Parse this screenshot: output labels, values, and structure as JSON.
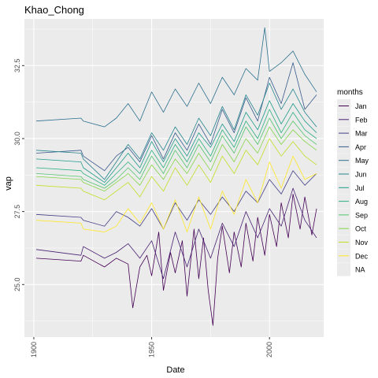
{
  "chart_data": {
    "type": "line",
    "title": "Khao_Chong",
    "xlabel": "Date",
    "ylabel": "vap",
    "xlim": [
      1896,
      2023
    ],
    "ylim": [
      23.2,
      34.1
    ],
    "x_ticks": [
      1900,
      1950,
      2000
    ],
    "x_tick_labels": [
      "1900",
      "1950",
      "2000"
    ],
    "y_ticks": [
      25.0,
      27.5,
      30.0,
      32.5
    ],
    "y_tick_labels": [
      "25.0",
      "27.5",
      "30.0",
      "32.5"
    ],
    "grid": true,
    "legend": {
      "title": "months",
      "position": "right"
    },
    "colors": {
      "panel": "#EBEBEB",
      "grid_major": "#FFFFFF",
      "na_swatch": "#EBEBEB"
    },
    "series": [
      {
        "name": "Jan",
        "color": "#440154",
        "x": [
          1901,
          1920,
          1921,
          1930,
          1935,
          1940,
          1942,
          1945,
          1948,
          1950,
          1953,
          1955,
          1958,
          1960,
          1963,
          1965,
          1968,
          1970,
          1972,
          1974,
          1976,
          1978,
          1980,
          1983,
          1985,
          1988,
          1990,
          1993,
          1995,
          1998,
          2000,
          2003,
          2005,
          2008,
          2010,
          2013,
          2015,
          2018,
          2020
        ],
        "y": [
          25.9,
          25.8,
          26.0,
          25.6,
          25.9,
          25.7,
          24.2,
          25.6,
          26.0,
          25.3,
          26.8,
          24.8,
          26.1,
          25.4,
          26.5,
          24.6,
          26.9,
          25.2,
          26.6,
          24.8,
          23.6,
          25.9,
          27.0,
          25.4,
          26.8,
          25.6,
          27.1,
          25.8,
          27.3,
          26.0,
          27.4,
          26.3,
          27.8,
          26.6,
          28.1,
          26.9,
          28.0,
          26.7,
          27.6
        ]
      },
      {
        "name": "Feb",
        "color": "#482173",
        "x": [
          1901,
          1920,
          1921,
          1930,
          1935,
          1940,
          1945,
          1950,
          1955,
          1960,
          1965,
          1970,
          1975,
          1980,
          1985,
          1990,
          1995,
          2000,
          2005,
          2010,
          2015,
          2020
        ],
        "y": [
          26.2,
          26.0,
          26.3,
          25.9,
          26.1,
          26.4,
          25.9,
          26.5,
          25.2,
          26.8,
          25.6,
          26.9,
          25.9,
          27.1,
          26.3,
          27.5,
          26.6,
          27.6,
          27.0,
          28.3,
          27.2,
          26.6
        ]
      },
      {
        "name": "Mar",
        "color": "#433E85",
        "x": [
          1901,
          1920,
          1921,
          1930,
          1935,
          1940,
          1945,
          1950,
          1955,
          1960,
          1965,
          1970,
          1975,
          1980,
          1985,
          1990,
          1995,
          2000,
          2005,
          2010,
          2015,
          2020
        ],
        "y": [
          27.4,
          27.3,
          27.2,
          27.0,
          27.5,
          27.3,
          27.0,
          27.6,
          26.9,
          27.8,
          27.2,
          27.9,
          27.4,
          28.0,
          27.5,
          28.2,
          27.8,
          28.6,
          28.1,
          28.9,
          28.4,
          28.8
        ]
      },
      {
        "name": "Apr",
        "color": "#38598C",
        "x": [
          1901,
          1920,
          1921,
          1930,
          1935,
          1940,
          1945,
          1950,
          1955,
          1960,
          1965,
          1970,
          1975,
          1980,
          1985,
          1990,
          1995,
          2000,
          2005,
          2010,
          2015,
          2020
        ],
        "y": [
          29.5,
          29.6,
          29.4,
          28.9,
          29.4,
          29.7,
          29.2,
          30.1,
          29.3,
          30.2,
          29.6,
          30.5,
          29.8,
          31.0,
          30.2,
          31.4,
          30.6,
          32.1,
          31.2,
          32.6,
          31.0,
          31.5
        ]
      },
      {
        "name": "May",
        "color": "#2D708E",
        "x": [
          1901,
          1920,
          1921,
          1930,
          1935,
          1940,
          1945,
          1950,
          1955,
          1960,
          1965,
          1970,
          1975,
          1980,
          1985,
          1990,
          1995,
          1998,
          2000,
          2005,
          2010,
          2015,
          2020
        ],
        "y": [
          30.6,
          30.7,
          30.6,
          30.4,
          30.7,
          31.2,
          30.6,
          31.6,
          30.9,
          31.7,
          31.1,
          31.9,
          31.2,
          32.1,
          31.5,
          32.4,
          32.0,
          33.8,
          32.3,
          32.6,
          33.0,
          32.2,
          31.6
        ]
      },
      {
        "name": "Jun",
        "color": "#25858E",
        "x": [
          1901,
          1920,
          1921,
          1930,
          1935,
          1940,
          1945,
          1950,
          1955,
          1960,
          1965,
          1970,
          1975,
          1980,
          1985,
          1990,
          1995,
          2000,
          2005,
          2010,
          2015,
          2020
        ],
        "y": [
          29.6,
          29.5,
          29.3,
          28.6,
          29.2,
          29.8,
          29.3,
          30.2,
          29.6,
          30.4,
          29.8,
          30.7,
          30.1,
          31.1,
          30.3,
          31.5,
          30.8,
          31.9,
          31.0,
          31.7,
          30.9,
          30.4
        ]
      },
      {
        "name": "Jul",
        "color": "#1E9B8A",
        "x": [
          1901,
          1920,
          1921,
          1930,
          1935,
          1940,
          1945,
          1950,
          1955,
          1960,
          1965,
          1970,
          1975,
          1980,
          1985,
          1990,
          1995,
          2000,
          2005,
          2010,
          2015,
          2020
        ],
        "y": [
          29.3,
          29.2,
          29.0,
          28.5,
          29.0,
          29.5,
          29.0,
          29.9,
          29.2,
          30.0,
          29.4,
          30.2,
          29.7,
          30.5,
          29.9,
          30.9,
          30.3,
          31.3,
          30.5,
          31.2,
          30.6,
          30.2
        ]
      },
      {
        "name": "Aug",
        "color": "#2BB07F",
        "x": [
          1901,
          1920,
          1921,
          1930,
          1935,
          1940,
          1945,
          1950,
          1955,
          1960,
          1965,
          1970,
          1975,
          1980,
          1985,
          1990,
          1995,
          2000,
          2005,
          2010,
          2015,
          2020
        ],
        "y": [
          29.0,
          28.9,
          28.8,
          28.4,
          28.8,
          29.2,
          28.8,
          29.6,
          29.0,
          29.8,
          29.2,
          30.0,
          29.4,
          30.3,
          29.7,
          30.6,
          30.0,
          31.0,
          30.2,
          30.9,
          30.3,
          30.0
        ]
      },
      {
        "name": "Sep",
        "color": "#51C56A",
        "x": [
          1901,
          1920,
          1921,
          1930,
          1935,
          1940,
          1945,
          1950,
          1955,
          1960,
          1965,
          1970,
          1975,
          1980,
          1985,
          1990,
          1995,
          2000,
          2005,
          2010,
          2015,
          2020
        ],
        "y": [
          28.8,
          28.7,
          28.6,
          28.3,
          28.6,
          29.0,
          28.6,
          29.4,
          28.8,
          29.6,
          29.0,
          29.8,
          29.2,
          30.1,
          29.5,
          30.4,
          29.8,
          30.7,
          30.0,
          30.6,
          30.1,
          29.8
        ]
      },
      {
        "name": "Oct",
        "color": "#85D54A",
        "x": [
          1901,
          1920,
          1921,
          1930,
          1935,
          1940,
          1945,
          1950,
          1955,
          1960,
          1965,
          1970,
          1975,
          1980,
          1985,
          1990,
          1995,
          2000,
          2005,
          2010,
          2015,
          2020
        ],
        "y": [
          28.7,
          28.6,
          28.5,
          28.2,
          28.5,
          28.8,
          28.4,
          29.1,
          28.6,
          29.3,
          28.8,
          29.5,
          28.9,
          29.8,
          29.2,
          30.0,
          29.5,
          30.4,
          29.8,
          30.3,
          29.9,
          29.6
        ]
      },
      {
        "name": "Nov",
        "color": "#C2DF23",
        "x": [
          1901,
          1920,
          1921,
          1930,
          1935,
          1940,
          1945,
          1950,
          1955,
          1960,
          1965,
          1970,
          1975,
          1980,
          1985,
          1990,
          1995,
          2000,
          2005,
          2010,
          2015,
          2020
        ],
        "y": [
          28.4,
          28.3,
          28.2,
          27.9,
          28.2,
          28.5,
          28.0,
          28.7,
          28.2,
          29.0,
          28.4,
          29.1,
          28.5,
          29.4,
          28.8,
          29.6,
          29.1,
          30.0,
          29.4,
          29.9,
          29.4,
          29.1
        ]
      },
      {
        "name": "Dec",
        "color": "#FDE725",
        "x": [
          1901,
          1920,
          1921,
          1930,
          1935,
          1940,
          1945,
          1950,
          1955,
          1960,
          1965,
          1970,
          1975,
          1980,
          1985,
          1990,
          1995,
          2000,
          2005,
          2010,
          2015,
          2020
        ],
        "y": [
          27.2,
          27.1,
          26.9,
          26.8,
          27.0,
          27.6,
          27.1,
          27.8,
          26.9,
          27.9,
          26.8,
          28.0,
          26.9,
          28.2,
          27.4,
          28.6,
          27.8,
          29.2,
          28.3,
          29.4,
          28.6,
          28.8
        ]
      }
    ],
    "legend_entries": [
      "Jan",
      "Feb",
      "Mar",
      "Apr",
      "May",
      "Jun",
      "Jul",
      "Aug",
      "Sep",
      "Oct",
      "Nov",
      "Dec",
      "NA"
    ]
  }
}
